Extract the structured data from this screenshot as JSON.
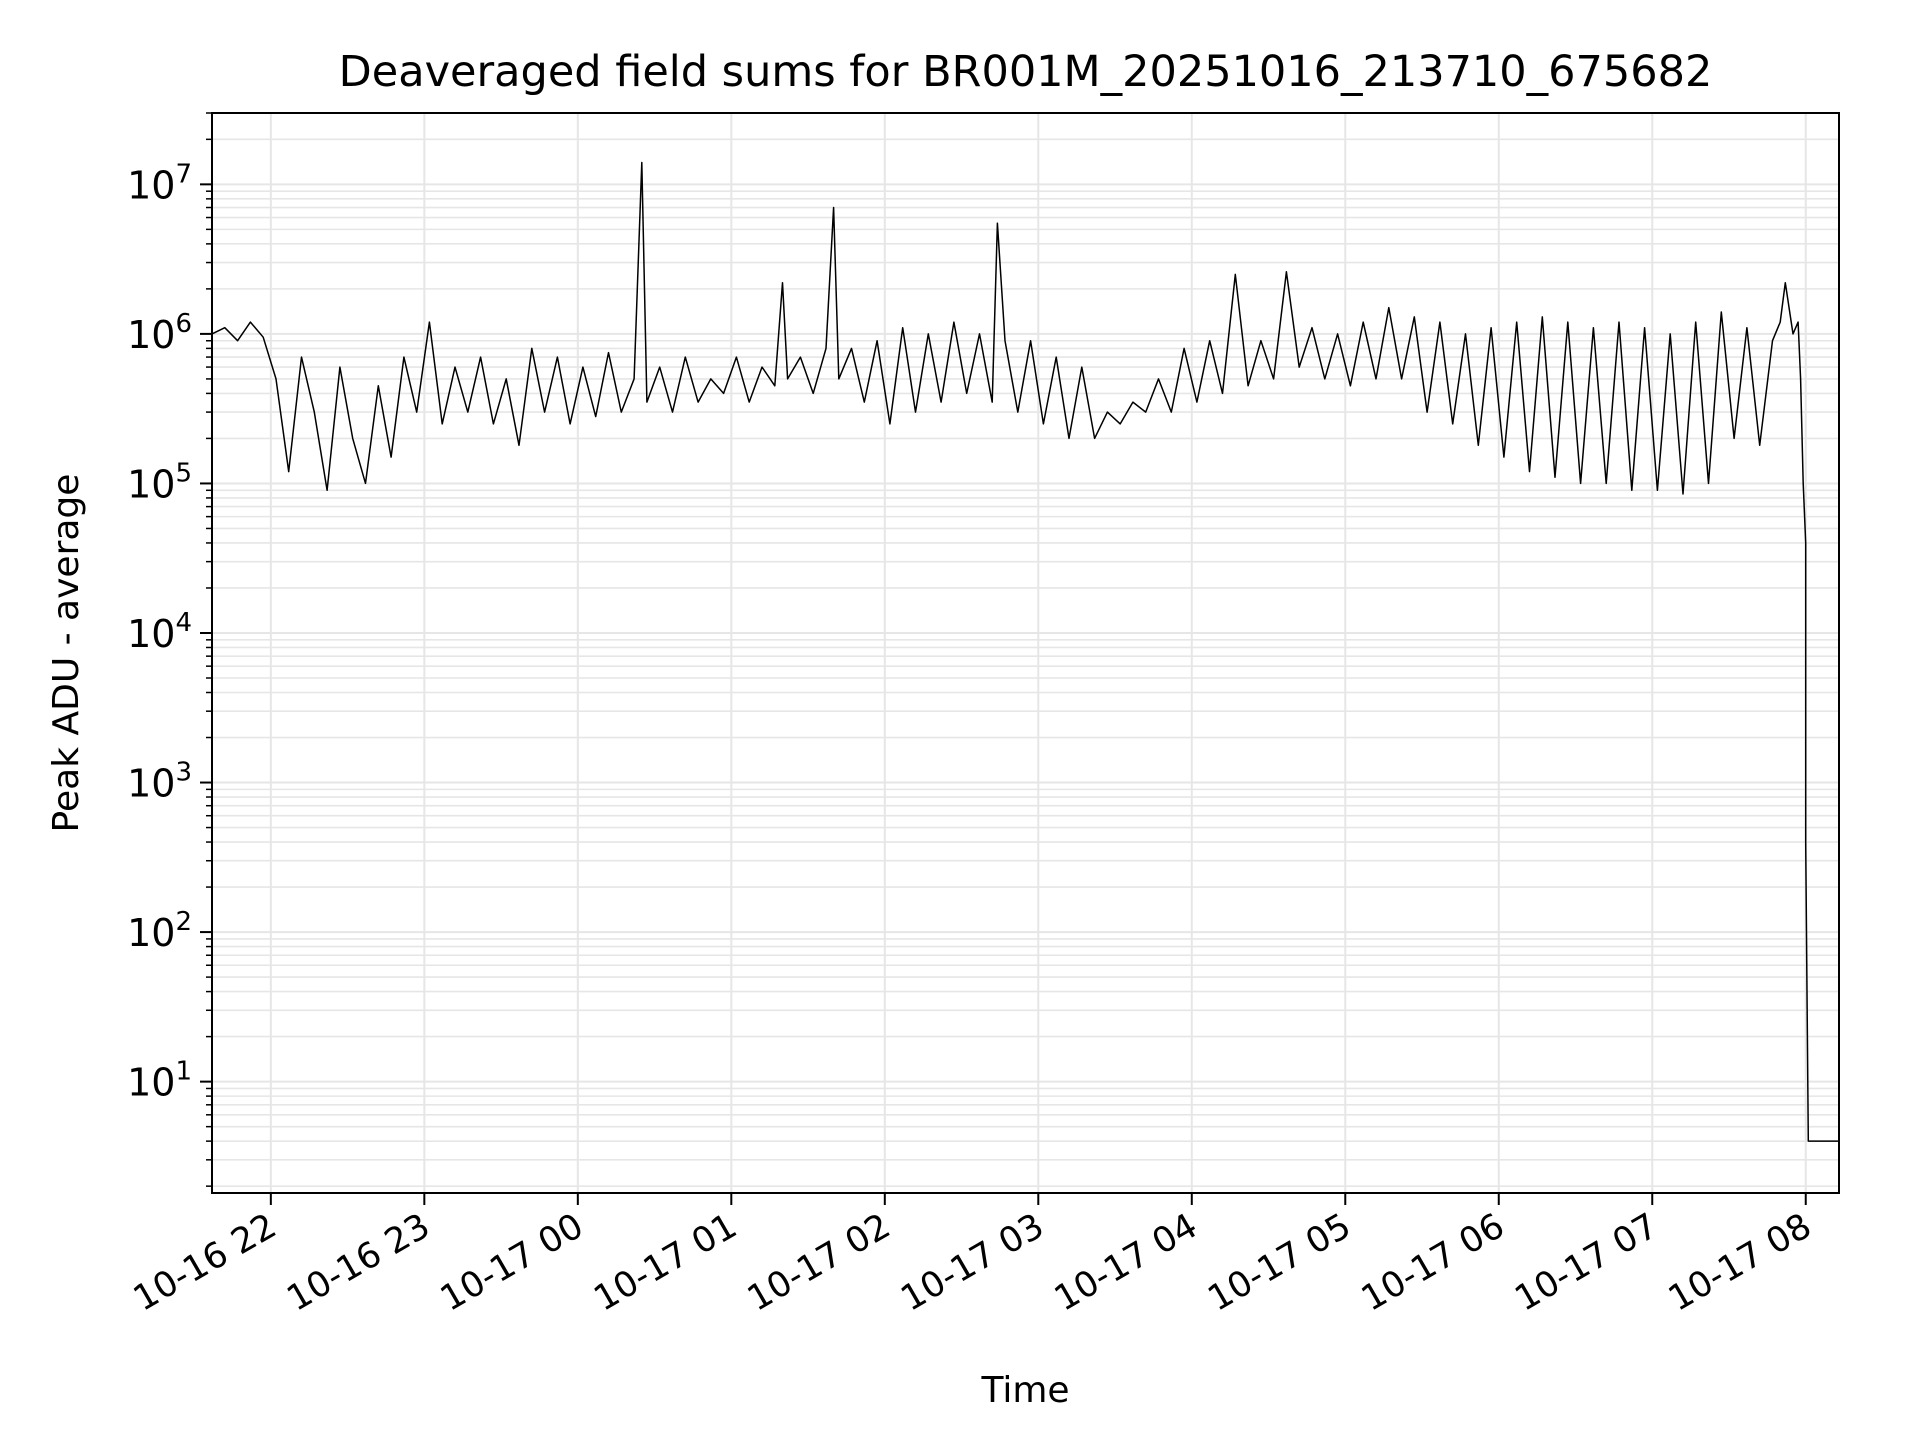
{
  "chart_data": {
    "type": "line",
    "title": "Deaveraged field sums for BR001M_20251016_213710_675682",
    "xlabel": "Time",
    "ylabel": "Peak ADU - average",
    "yscale": "log",
    "ylim": [
      1.8,
      30000000
    ],
    "xlim": [
      "2025-10-16 21:37",
      "2025-10-17 08:13"
    ],
    "grid": true,
    "line_color": "#000000",
    "grid_color": "#e6e6e6",
    "x_ticks": [
      "10-16 22",
      "10-16 23",
      "10-17 00",
      "10-17 01",
      "10-17 02",
      "10-17 03",
      "10-17 04",
      "10-17 05",
      "10-17 06",
      "10-17 07",
      "10-17 08"
    ],
    "y_ticks": [
      {
        "base": "10",
        "exp": "1"
      },
      {
        "base": "10",
        "exp": "2"
      },
      {
        "base": "10",
        "exp": "3"
      },
      {
        "base": "10",
        "exp": "4"
      },
      {
        "base": "10",
        "exp": "5"
      },
      {
        "base": "10",
        "exp": "6"
      },
      {
        "base": "10",
        "exp": "7"
      }
    ],
    "series": [
      {
        "x": [
          "2025-10-16 21:37",
          "2025-10-16 21:42",
          "2025-10-16 21:47",
          "2025-10-16 21:52",
          "2025-10-16 21:57",
          "2025-10-16 22:02",
          "2025-10-16 22:07",
          "2025-10-16 22:12",
          "2025-10-16 22:17",
          "2025-10-16 22:22",
          "2025-10-16 22:27",
          "2025-10-16 22:32",
          "2025-10-16 22:37",
          "2025-10-16 22:42",
          "2025-10-16 22:47",
          "2025-10-16 22:52",
          "2025-10-16 22:57",
          "2025-10-16 23:02",
          "2025-10-16 23:07",
          "2025-10-16 23:12",
          "2025-10-16 23:17",
          "2025-10-16 23:22",
          "2025-10-16 23:27",
          "2025-10-16 23:32",
          "2025-10-16 23:37",
          "2025-10-16 23:42",
          "2025-10-16 23:47",
          "2025-10-16 23:52",
          "2025-10-16 23:57",
          "2025-10-17 00:02",
          "2025-10-17 00:07",
          "2025-10-17 00:12",
          "2025-10-17 00:17",
          "2025-10-17 00:22",
          "2025-10-17 00:25",
          "2025-10-17 00:27",
          "2025-10-17 00:32",
          "2025-10-17 00:37",
          "2025-10-17 00:42",
          "2025-10-17 00:47",
          "2025-10-17 00:52",
          "2025-10-17 00:57",
          "2025-10-17 01:02",
          "2025-10-17 01:07",
          "2025-10-17 01:12",
          "2025-10-17 01:17",
          "2025-10-17 01:20",
          "2025-10-17 01:22",
          "2025-10-17 01:27",
          "2025-10-17 01:32",
          "2025-10-17 01:37",
          "2025-10-17 01:40",
          "2025-10-17 01:42",
          "2025-10-17 01:47",
          "2025-10-17 01:52",
          "2025-10-17 01:57",
          "2025-10-17 02:02",
          "2025-10-17 02:07",
          "2025-10-17 02:12",
          "2025-10-17 02:17",
          "2025-10-17 02:22",
          "2025-10-17 02:27",
          "2025-10-17 02:32",
          "2025-10-17 02:37",
          "2025-10-17 02:42",
          "2025-10-17 02:44",
          "2025-10-17 02:47",
          "2025-10-17 02:52",
          "2025-10-17 02:57",
          "2025-10-17 03:02",
          "2025-10-17 03:07",
          "2025-10-17 03:12",
          "2025-10-17 03:17",
          "2025-10-17 03:22",
          "2025-10-17 03:27",
          "2025-10-17 03:32",
          "2025-10-17 03:37",
          "2025-10-17 03:42",
          "2025-10-17 03:47",
          "2025-10-17 03:52",
          "2025-10-17 03:57",
          "2025-10-17 04:02",
          "2025-10-17 04:07",
          "2025-10-17 04:12",
          "2025-10-17 04:17",
          "2025-10-17 04:22",
          "2025-10-17 04:27",
          "2025-10-17 04:32",
          "2025-10-17 04:37",
          "2025-10-17 04:42",
          "2025-10-17 04:47",
          "2025-10-17 04:52",
          "2025-10-17 04:57",
          "2025-10-17 05:02",
          "2025-10-17 05:07",
          "2025-10-17 05:12",
          "2025-10-17 05:17",
          "2025-10-17 05:22",
          "2025-10-17 05:27",
          "2025-10-17 05:32",
          "2025-10-17 05:37",
          "2025-10-17 05:42",
          "2025-10-17 05:47",
          "2025-10-17 05:52",
          "2025-10-17 05:57",
          "2025-10-17 06:02",
          "2025-10-17 06:07",
          "2025-10-17 06:12",
          "2025-10-17 06:17",
          "2025-10-17 06:22",
          "2025-10-17 06:27",
          "2025-10-17 06:32",
          "2025-10-17 06:37",
          "2025-10-17 06:42",
          "2025-10-17 06:47",
          "2025-10-17 06:52",
          "2025-10-17 06:57",
          "2025-10-17 07:02",
          "2025-10-17 07:07",
          "2025-10-17 07:12",
          "2025-10-17 07:17",
          "2025-10-17 07:22",
          "2025-10-17 07:27",
          "2025-10-17 07:32",
          "2025-10-17 07:37",
          "2025-10-17 07:42",
          "2025-10-17 07:47",
          "2025-10-17 07:50",
          "2025-10-17 07:52",
          "2025-10-17 07:55",
          "2025-10-17 07:57",
          "2025-10-17 07:58",
          "2025-10-17 07:59",
          "2025-10-17 08:00",
          "2025-10-17 08:00",
          "2025-10-17 08:01",
          "2025-10-17 08:05",
          "2025-10-17 08:09",
          "2025-10-17 08:13"
        ],
        "y": [
          1000000,
          1100000,
          900000,
          1200000,
          950000,
          500000,
          120000,
          700000,
          300000,
          90000,
          600000,
          200000,
          100000,
          450000,
          150000,
          700000,
          300000,
          1200000,
          250000,
          600000,
          300000,
          700000,
          250000,
          500000,
          180000,
          800000,
          300000,
          700000,
          250000,
          600000,
          280000,
          750000,
          300000,
          500000,
          14000000,
          350000,
          600000,
          300000,
          700000,
          350000,
          500000,
          400000,
          700000,
          350000,
          600000,
          450000,
          2200000,
          500000,
          700000,
          400000,
          800000,
          7000000,
          500000,
          800000,
          350000,
          900000,
          250000,
          1100000,
          300000,
          1000000,
          350000,
          1200000,
          400000,
          1000000,
          350000,
          5500000,
          900000,
          300000,
          900000,
          250000,
          700000,
          200000,
          600000,
          200000,
          300000,
          250000,
          350000,
          300000,
          500000,
          300000,
          800000,
          350000,
          900000,
          400000,
          2500000,
          450000,
          900000,
          500000,
          2600000,
          600000,
          1100000,
          500000,
          1000000,
          450000,
          1200000,
          500000,
          1500000,
          500000,
          1300000,
          300000,
          1200000,
          250000,
          1000000,
          180000,
          1100000,
          150000,
          1200000,
          120000,
          1300000,
          110000,
          1200000,
          100000,
          1100000,
          100000,
          1200000,
          90000,
          1100000,
          90000,
          1000000,
          85000,
          1200000,
          100000,
          1400000,
          200000,
          1100000,
          180000,
          900000,
          1200000,
          2200000,
          1000000,
          1200000,
          500000,
          100000,
          40000,
          400,
          4,
          4,
          4,
          4
        ]
      }
    ]
  }
}
